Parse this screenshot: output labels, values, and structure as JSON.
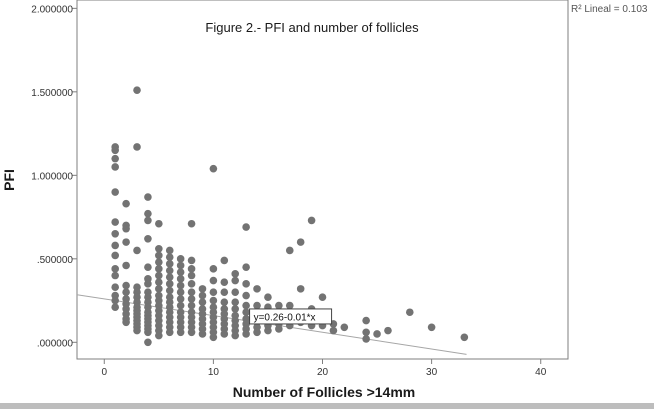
{
  "chart_data": {
    "type": "scatter",
    "title": "Figure 2.- PFI and number of follicles",
    "xlabel": "Number of Follicles >14mm",
    "ylabel": "PFI",
    "xlim": [
      -2.5,
      42.5
    ],
    "ylim": [
      -0.1,
      2.05
    ],
    "x_ticks": [
      0,
      10,
      20,
      30,
      40
    ],
    "x_tick_labels": [
      "0",
      "10",
      "20",
      "30",
      "40"
    ],
    "y_ticks": [
      0,
      0.5,
      1.0,
      1.5,
      2.0
    ],
    "y_tick_labels": [
      ".000000",
      ".500000",
      "1.000000",
      "1.500000",
      "2.000000"
    ],
    "grid": false,
    "point_color": "#737373",
    "fit_line": {
      "intercept": 0.26,
      "slope": -0.01,
      "x_range": [
        -2.5,
        33.2
      ],
      "label": "y=0.26-0.01*x",
      "color": "#a6a6a6"
    },
    "r2_label": "R² Lineal = 0.103",
    "points": [
      [
        1,
        1.17
      ],
      [
        1,
        1.15
      ],
      [
        1,
        1.1
      ],
      [
        1,
        1.05
      ],
      [
        1,
        0.9
      ],
      [
        1,
        0.72
      ],
      [
        1,
        0.65
      ],
      [
        1,
        0.58
      ],
      [
        1,
        0.52
      ],
      [
        1,
        0.44
      ],
      [
        1,
        0.4
      ],
      [
        1,
        0.33
      ],
      [
        1,
        0.28
      ],
      [
        1,
        0.25
      ],
      [
        1,
        0.21
      ],
      [
        2,
        0.83
      ],
      [
        2,
        0.7
      ],
      [
        2,
        0.68
      ],
      [
        2,
        0.6
      ],
      [
        2,
        0.46
      ],
      [
        2,
        0.34
      ],
      [
        2,
        0.3
      ],
      [
        2,
        0.26
      ],
      [
        2,
        0.23
      ],
      [
        2,
        0.2
      ],
      [
        2,
        0.17
      ],
      [
        2,
        0.14
      ],
      [
        2,
        0.12
      ],
      [
        3,
        1.51
      ],
      [
        3,
        1.17
      ],
      [
        3,
        0.55
      ],
      [
        3,
        0.33
      ],
      [
        3,
        0.3
      ],
      [
        3,
        0.27
      ],
      [
        3,
        0.24
      ],
      [
        3,
        0.21
      ],
      [
        3,
        0.19
      ],
      [
        3,
        0.17
      ],
      [
        3,
        0.15
      ],
      [
        3,
        0.13
      ],
      [
        3,
        0.11
      ],
      [
        3,
        0.09
      ],
      [
        3,
        0.07
      ],
      [
        4,
        0.87
      ],
      [
        4,
        0.77
      ],
      [
        4,
        0.73
      ],
      [
        4,
        0.62
      ],
      [
        4,
        0.45
      ],
      [
        4,
        0.38
      ],
      [
        4,
        0.35
      ],
      [
        4,
        0.3
      ],
      [
        4,
        0.27
      ],
      [
        4,
        0.24
      ],
      [
        4,
        0.21
      ],
      [
        4,
        0.18
      ],
      [
        4,
        0.16
      ],
      [
        4,
        0.14
      ],
      [
        4,
        0.12
      ],
      [
        4,
        0.1
      ],
      [
        4,
        0.08
      ],
      [
        4,
        0.06
      ],
      [
        4,
        0.0
      ],
      [
        5,
        0.71
      ],
      [
        5,
        0.56
      ],
      [
        5,
        0.52
      ],
      [
        5,
        0.48
      ],
      [
        5,
        0.44
      ],
      [
        5,
        0.4
      ],
      [
        5,
        0.36
      ],
      [
        5,
        0.32
      ],
      [
        5,
        0.28
      ],
      [
        5,
        0.25
      ],
      [
        5,
        0.22
      ],
      [
        5,
        0.19
      ],
      [
        5,
        0.16
      ],
      [
        5,
        0.13
      ],
      [
        5,
        0.1
      ],
      [
        5,
        0.07
      ],
      [
        5,
        0.04
      ],
      [
        6,
        0.55
      ],
      [
        6,
        0.51
      ],
      [
        6,
        0.47
      ],
      [
        6,
        0.43
      ],
      [
        6,
        0.39
      ],
      [
        6,
        0.35
      ],
      [
        6,
        0.31
      ],
      [
        6,
        0.27
      ],
      [
        6,
        0.24
      ],
      [
        6,
        0.21
      ],
      [
        6,
        0.18
      ],
      [
        6,
        0.15
      ],
      [
        6,
        0.12
      ],
      [
        6,
        0.09
      ],
      [
        6,
        0.06
      ],
      [
        7,
        0.5
      ],
      [
        7,
        0.46
      ],
      [
        7,
        0.42
      ],
      [
        7,
        0.38
      ],
      [
        7,
        0.34
      ],
      [
        7,
        0.3
      ],
      [
        7,
        0.26
      ],
      [
        7,
        0.22
      ],
      [
        7,
        0.18
      ],
      [
        7,
        0.15
      ],
      [
        7,
        0.12
      ],
      [
        7,
        0.09
      ],
      [
        7,
        0.06
      ],
      [
        8,
        0.71
      ],
      [
        8,
        0.49
      ],
      [
        8,
        0.44
      ],
      [
        8,
        0.4
      ],
      [
        8,
        0.35
      ],
      [
        8,
        0.3
      ],
      [
        8,
        0.26
      ],
      [
        8,
        0.22
      ],
      [
        8,
        0.18
      ],
      [
        8,
        0.15
      ],
      [
        8,
        0.12
      ],
      [
        8,
        0.09
      ],
      [
        8,
        0.06
      ],
      [
        9,
        0.32
      ],
      [
        9,
        0.28
      ],
      [
        9,
        0.24
      ],
      [
        9,
        0.2
      ],
      [
        9,
        0.17
      ],
      [
        9,
        0.14
      ],
      [
        9,
        0.11
      ],
      [
        9,
        0.08
      ],
      [
        9,
        0.05
      ],
      [
        10,
        1.04
      ],
      [
        10,
        0.44
      ],
      [
        10,
        0.37
      ],
      [
        10,
        0.3
      ],
      [
        10,
        0.25
      ],
      [
        10,
        0.21
      ],
      [
        10,
        0.18
      ],
      [
        10,
        0.15
      ],
      [
        10,
        0.12
      ],
      [
        10,
        0.09
      ],
      [
        10,
        0.06
      ],
      [
        10,
        0.03
      ],
      [
        11,
        0.49
      ],
      [
        11,
        0.36
      ],
      [
        11,
        0.3
      ],
      [
        11,
        0.24
      ],
      [
        11,
        0.2
      ],
      [
        11,
        0.17
      ],
      [
        11,
        0.14
      ],
      [
        11,
        0.11
      ],
      [
        11,
        0.08
      ],
      [
        11,
        0.05
      ],
      [
        12,
        0.41
      ],
      [
        12,
        0.37
      ],
      [
        12,
        0.3
      ],
      [
        12,
        0.24
      ],
      [
        12,
        0.2
      ],
      [
        12,
        0.16
      ],
      [
        12,
        0.13
      ],
      [
        12,
        0.1
      ],
      [
        12,
        0.07
      ],
      [
        12,
        0.04
      ],
      [
        13,
        0.69
      ],
      [
        13,
        0.45
      ],
      [
        13,
        0.35
      ],
      [
        13,
        0.28
      ],
      [
        13,
        0.22
      ],
      [
        13,
        0.18
      ],
      [
        13,
        0.14
      ],
      [
        13,
        0.11
      ],
      [
        13,
        0.08
      ],
      [
        13,
        0.05
      ],
      [
        14,
        0.32
      ],
      [
        14,
        0.22
      ],
      [
        14,
        0.18
      ],
      [
        14,
        0.15
      ],
      [
        14,
        0.12
      ],
      [
        14,
        0.09
      ],
      [
        14,
        0.06
      ],
      [
        15,
        0.27
      ],
      [
        15,
        0.21
      ],
      [
        15,
        0.17
      ],
      [
        15,
        0.13
      ],
      [
        15,
        0.1
      ],
      [
        15,
        0.07
      ],
      [
        16,
        0.22
      ],
      [
        16,
        0.15
      ],
      [
        16,
        0.11
      ],
      [
        16,
        0.08
      ],
      [
        17,
        0.55
      ],
      [
        17,
        0.22
      ],
      [
        17,
        0.15
      ],
      [
        17,
        0.1
      ],
      [
        18,
        0.6
      ],
      [
        18,
        0.32
      ],
      [
        18,
        0.18
      ],
      [
        18,
        0.12
      ],
      [
        19,
        0.73
      ],
      [
        19,
        0.2
      ],
      [
        19,
        0.14
      ],
      [
        19,
        0.1
      ],
      [
        20,
        0.27
      ],
      [
        20,
        0.16
      ],
      [
        20,
        0.1
      ],
      [
        21,
        0.11
      ],
      [
        21,
        0.07
      ],
      [
        22,
        0.09
      ],
      [
        24,
        0.13
      ],
      [
        24,
        0.06
      ],
      [
        24,
        0.02
      ],
      [
        25,
        0.05
      ],
      [
        26,
        0.07
      ],
      [
        28,
        0.18
      ],
      [
        30,
        0.09
      ],
      [
        33,
        0.03
      ]
    ]
  }
}
